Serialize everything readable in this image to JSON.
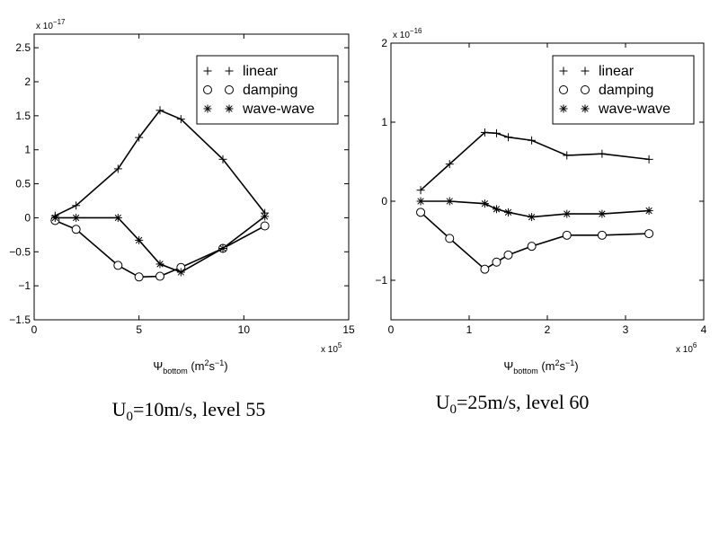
{
  "chart_data": [
    {
      "type": "line",
      "x_scale_label": "x 10",
      "x_scale_exponent": "5",
      "y_scale_label": "x 10",
      "y_scale_exponent": "−17",
      "xlim": [
        0,
        15
      ],
      "ylim": [
        -1.5,
        2.7
      ],
      "x_ticks": [
        0,
        5,
        10,
        15
      ],
      "y_ticks": [
        -1.5,
        -1,
        -0.5,
        0,
        0.5,
        1,
        1.5,
        2,
        2.5
      ],
      "x_tick_labels": [
        "0",
        "5",
        "10",
        "15"
      ],
      "y_tick_labels": [
        "−1.5",
        "−1",
        "−0.5",
        "0",
        "0.5",
        "1",
        "1.5",
        "2",
        "2.5"
      ],
      "xlabel_main": "Ψ",
      "xlabel_sub": "bottom",
      "xlabel_units": " (m",
      "xlabel_units_sup1": "2",
      "xlabel_units_mid": "s",
      "xlabel_units_sup2": "−1",
      "xlabel_units_end": ")",
      "caption_main": "U",
      "caption_sub": "0",
      "caption_rest": "=10m/s, level 55",
      "legend": [
        {
          "label": "linear",
          "marker": "plus"
        },
        {
          "label": "damping",
          "marker": "circle"
        },
        {
          "label": "wave-wave",
          "marker": "star"
        }
      ],
      "legend_marker_pairs": true,
      "legend_position": "top-right",
      "series": [
        {
          "name": "linear",
          "marker": "plus",
          "x": [
            1,
            2,
            4,
            5,
            6,
            7,
            9,
            11
          ],
          "y": [
            0.03,
            0.18,
            0.72,
            1.18,
            1.58,
            1.45,
            0.86,
            0.07
          ]
        },
        {
          "name": "damping",
          "marker": "circle",
          "x": [
            1,
            2,
            4,
            5,
            6,
            7,
            9,
            11
          ],
          "y": [
            -0.04,
            -0.17,
            -0.7,
            -0.87,
            -0.86,
            -0.73,
            -0.45,
            -0.12
          ]
        },
        {
          "name": "wave-wave",
          "marker": "star",
          "x": [
            1,
            2,
            4,
            5,
            6,
            7,
            9,
            11
          ],
          "y": [
            0.0,
            0.0,
            0.0,
            -0.33,
            -0.68,
            -0.8,
            -0.45,
            0.02
          ]
        }
      ]
    },
    {
      "type": "line",
      "x_scale_label": "x 10",
      "x_scale_exponent": "6",
      "y_scale_label": "x 10",
      "y_scale_exponent": "−16",
      "xlim": [
        0,
        4
      ],
      "ylim": [
        -1.5,
        2
      ],
      "x_ticks": [
        0,
        1,
        2,
        3,
        4
      ],
      "y_ticks": [
        -1,
        0,
        1,
        2
      ],
      "x_tick_labels": [
        "0",
        "1",
        "2",
        "3",
        "4"
      ],
      "y_tick_labels": [
        "−1",
        "0",
        "1",
        "2"
      ],
      "xlabel_main": "Ψ",
      "xlabel_sub": "bottom",
      "xlabel_units": " (m",
      "xlabel_units_sup1": "2",
      "xlabel_units_mid": "s",
      "xlabel_units_sup2": "−1",
      "xlabel_units_end": ")",
      "caption_main": "U",
      "caption_sub": "0",
      "caption_rest": "=25m/s, level 60",
      "legend": [
        {
          "label": "linear",
          "marker": "plus"
        },
        {
          "label": "damping",
          "marker": "circle"
        },
        {
          "label": "wave-wave",
          "marker": "star"
        }
      ],
      "legend_marker_pairs": true,
      "legend_position": "top-right",
      "series": [
        {
          "name": "linear",
          "marker": "plus",
          "x": [
            0.38,
            0.75,
            1.2,
            1.35,
            1.5,
            1.8,
            2.25,
            2.7,
            3.3
          ],
          "y": [
            0.14,
            0.47,
            0.87,
            0.86,
            0.81,
            0.77,
            0.58,
            0.6,
            0.53
          ]
        },
        {
          "name": "damping",
          "marker": "circle",
          "x": [
            0.38,
            0.75,
            1.2,
            1.35,
            1.5,
            1.8,
            2.25,
            2.7,
            3.3
          ],
          "y": [
            -0.14,
            -0.47,
            -0.86,
            -0.77,
            -0.68,
            -0.57,
            -0.43,
            -0.43,
            -0.41
          ]
        },
        {
          "name": "wave-wave",
          "marker": "star",
          "x": [
            0.38,
            0.75,
            1.2,
            1.35,
            1.5,
            1.8,
            2.25,
            2.7,
            3.3
          ],
          "y": [
            0.0,
            0.0,
            -0.03,
            -0.1,
            -0.14,
            -0.2,
            -0.16,
            -0.16,
            -0.12
          ]
        }
      ]
    }
  ]
}
